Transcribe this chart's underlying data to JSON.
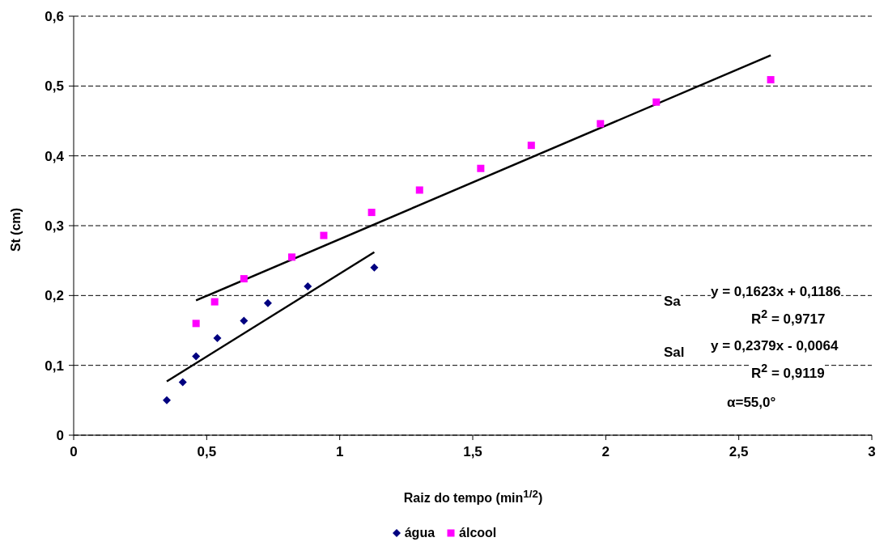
{
  "chart_data": {
    "type": "scatter",
    "xlabel": "Raiz do tempo (min$^{1/2}$)",
    "ylabel": "St (cm)",
    "xlim": [
      0,
      3
    ],
    "xticks": [
      0,
      {
        "value": 0.5,
        "label": "0,5"
      },
      1,
      {
        "value": 1.5,
        "label": "1,5"
      },
      2,
      {
        "value": 2.5,
        "label": "2,5"
      },
      3
    ],
    "ylim": [
      0,
      0.6
    ],
    "yticks": [
      0,
      {
        "value": 0.1,
        "label": "0,1"
      },
      {
        "value": 0.2,
        "label": "0,2"
      },
      {
        "value": 0.3,
        "label": "0,3"
      },
      {
        "value": 0.4,
        "label": "0,4"
      },
      {
        "value": 0.5,
        "label": "0,5"
      },
      {
        "value": 0.6,
        "label": "0,6"
      }
    ],
    "grid": "y",
    "legend": "bottom",
    "series": [
      {
        "name": "água",
        "type": "scatter",
        "marker": "diamond",
        "color": "#000080",
        "x": [
          0.35,
          0.41,
          0.46,
          0.54,
          0.64,
          0.73,
          0.88,
          1.13
        ],
        "values": [
          0.05,
          0.076,
          0.113,
          0.139,
          0.164,
          0.189,
          0.213,
          0.24
        ]
      },
      {
        "name": "álcool",
        "type": "scatter",
        "marker": "square",
        "color": "#ff00ff",
        "x": [
          0.46,
          0.53,
          0.64,
          0.82,
          0.94,
          1.12,
          1.3,
          1.53,
          1.72,
          1.98,
          2.19,
          2.62
        ],
        "values": [
          0.16,
          0.191,
          0.224,
          0.255,
          0.286,
          0.319,
          0.351,
          0.382,
          0.415,
          0.446,
          0.477,
          0.509
        ]
      },
      {
        "type": "line",
        "marker": "none",
        "color": "#000000",
        "x": [
          0.35,
          1.13
        ],
        "values": [
          0.077,
          0.262
        ]
      },
      {
        "type": "line",
        "marker": "none",
        "color": "#000000",
        "x": [
          0.46,
          2.62
        ],
        "values": [
          0.193,
          0.544
        ]
      }
    ],
    "annotations": [
      "Sa",
      "y = 0,1623x + 0,1186",
      "R$^{2}$ = 0,9717",
      "Sal",
      "y = 0,2379x - 0,0064",
      "R$^{2}$ = 0,9119",
      "α=55,0°"
    ]
  }
}
